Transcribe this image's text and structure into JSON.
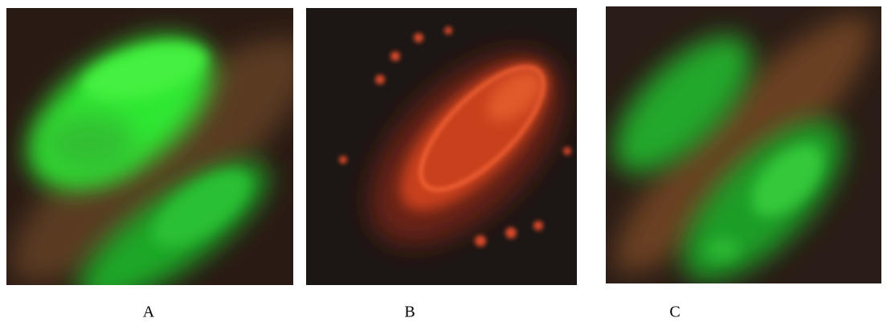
{
  "panels": [
    {
      "label": "A"
    },
    {
      "label": "B"
    },
    {
      "label": "C"
    }
  ]
}
